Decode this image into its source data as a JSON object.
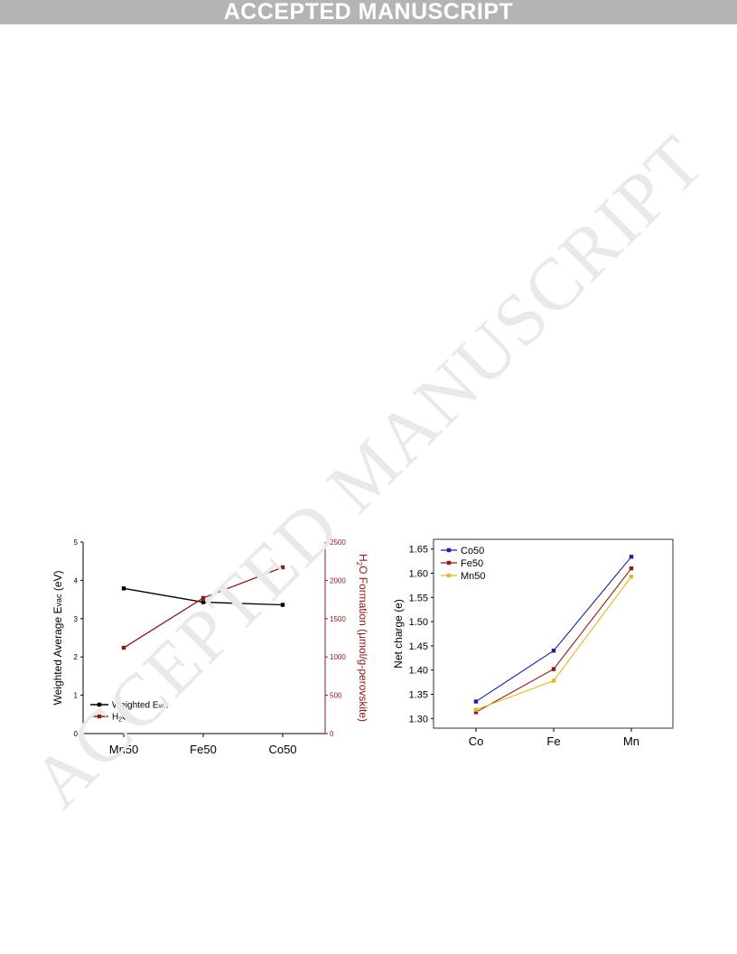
{
  "header": {
    "banner_text": "ACCEPTED MANUSCRIPT"
  },
  "watermark": {
    "text": "ACCEPTED MANUSCRIPT"
  },
  "colors": {
    "banner_bg": "#b4b4b4",
    "evac": "#000000",
    "h2o": "#8b1a1a",
    "co50": "#1f1f9e",
    "fe50": "#8b1a1a",
    "mn50": "#e8b62a",
    "right_axis": "#8b1a1a"
  },
  "chart_data": [
    {
      "type": "line",
      "categories": [
        "Mn50",
        "Fe50",
        "Co50"
      ],
      "ylabel": "Weighted Average Evac (eV)",
      "ylabel_main": "Weighted Average E",
      "ylabel_sub": "vac",
      "ylabel_tail": " (eV)",
      "ylim": [
        0,
        5
      ],
      "yticks": [
        "0",
        "1",
        "2",
        "3",
        "4",
        "5"
      ],
      "y2label": "H2O Formation (μmol/g-perovskite)",
      "y2label_main": "H",
      "y2label_sub": "2",
      "y2label_tail": "O Formation (μmol/g-perovskite)",
      "y2lim": [
        0,
        2500
      ],
      "y2ticks": [
        "0",
        "500",
        "1000",
        "1500",
        "2000",
        "2500"
      ],
      "legend_position": "bottom-left",
      "series": [
        {
          "name": "Weighted Evac",
          "legend_main": "Weighted E",
          "legend_sub": "vac",
          "legend_tail": "",
          "axis": "left",
          "values": [
            3.79,
            3.43,
            3.36
          ]
        },
        {
          "name": "H2O",
          "legend_main": "H",
          "legend_sub": "2",
          "legend_tail": "O",
          "axis": "right",
          "values": [
            1120,
            1770,
            2170
          ]
        }
      ]
    },
    {
      "type": "line",
      "categories": [
        "Co",
        "Fe",
        "Mn"
      ],
      "ylabel": "Net charge (e)",
      "ylim": [
        1.28,
        1.67
      ],
      "yticks": [
        "1.30",
        "1.35",
        "1.40",
        "1.45",
        "1.50",
        "1.55",
        "1.60",
        "1.65"
      ],
      "legend_position": "top-left",
      "series": [
        {
          "name": "Co50",
          "values": [
            1.335,
            1.44,
            1.634
          ]
        },
        {
          "name": "Fe50",
          "values": [
            1.313,
            1.402,
            1.61
          ]
        },
        {
          "name": "Mn50",
          "values": [
            1.318,
            1.378,
            1.593
          ]
        }
      ]
    }
  ]
}
